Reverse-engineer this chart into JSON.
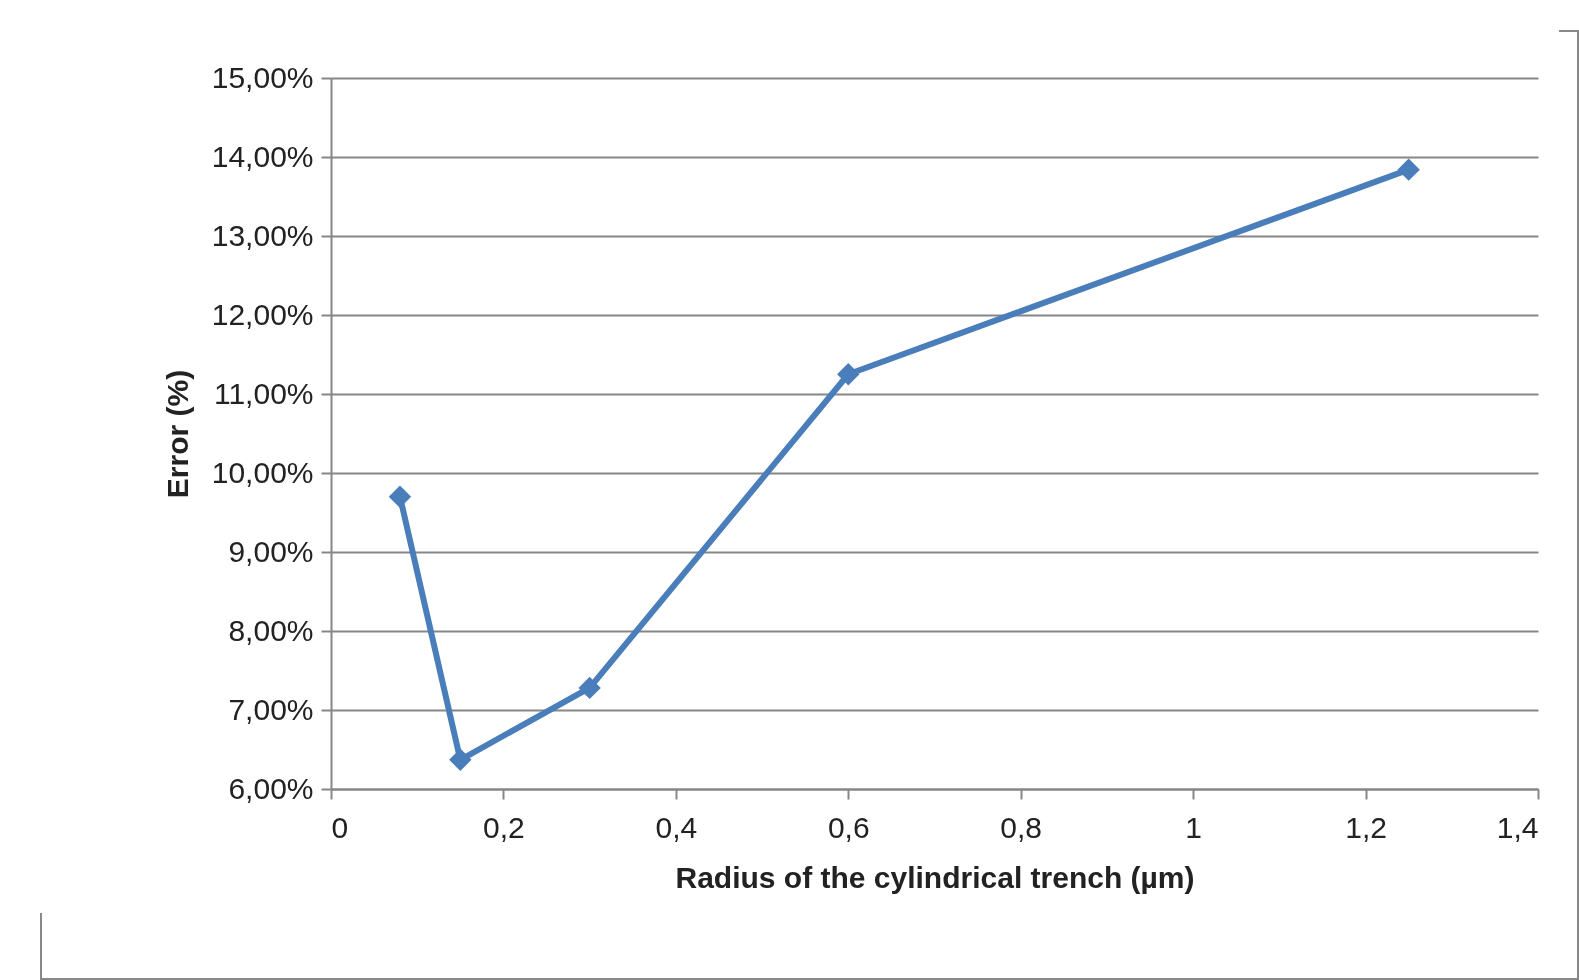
{
  "chart_data": {
    "type": "line",
    "xlabel": "Radius of the cylindrical trench (µm)",
    "ylabel": "Error (%)",
    "x": [
      0.08,
      0.15,
      0.3,
      0.6,
      1.25
    ],
    "series": [
      {
        "color": "#4a7ebb",
        "values": [
          9.7,
          6.37,
          7.28,
          11.25,
          13.84
        ]
      }
    ],
    "xlim": [
      0,
      1.4
    ],
    "xticks": [
      0,
      {
        "value": 0.2,
        "label": "0,2"
      },
      {
        "value": 0.4,
        "label": "0,4"
      },
      {
        "value": 0.6,
        "label": "0,6"
      },
      {
        "value": 0.8,
        "label": "0,8"
      },
      1,
      {
        "value": 1.2,
        "label": "1,2"
      },
      {
        "value": 1.4,
        "label": "1,4"
      }
    ],
    "ylim": [
      6,
      15
    ],
    "yticks": [
      {
        "value": 6,
        "label": "6,00%"
      },
      {
        "value": 7,
        "label": "7,00%"
      },
      {
        "value": 8,
        "label": "8,00%"
      },
      {
        "value": 9,
        "label": "9,00%"
      },
      {
        "value": 10,
        "label": "10,00%"
      },
      {
        "value": 11,
        "label": "11,00%"
      },
      {
        "value": 12,
        "label": "12,00%"
      },
      {
        "value": 13,
        "label": "13,00%"
      },
      {
        "value": 14,
        "label": "14,00%"
      },
      {
        "value": 15,
        "label": "15,00%"
      }
    ],
    "grid": "y",
    "marker": "diamond",
    "line_style": "solid"
  }
}
